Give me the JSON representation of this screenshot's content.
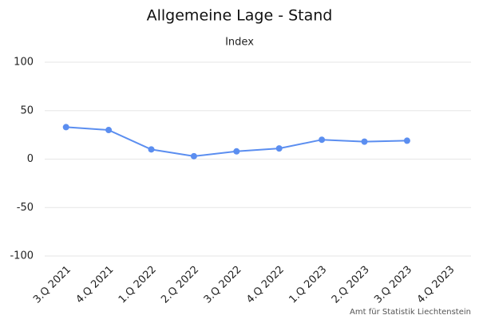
{
  "chart_data": {
    "type": "line",
    "title": "Allgemeine Lage - Stand",
    "subtitle": "Index",
    "categories": [
      "3.Q 2021",
      "4.Q 2021",
      "1.Q 2022",
      "2.Q 2022",
      "3.Q 2022",
      "4.Q 2022",
      "1.Q 2023",
      "2.Q 2023",
      "3.Q 2023",
      "4.Q 2023"
    ],
    "series": [
      {
        "name": "Index",
        "color": "#5b8ef0",
        "values": [
          33,
          30,
          10,
          3,
          8,
          11,
          20,
          18,
          19,
          null
        ]
      }
    ],
    "ylim": [
      -100,
      100
    ],
    "yticks": [
      -100,
      -50,
      0,
      50,
      100
    ],
    "grid": true,
    "credits": "Amt für Statistik Liechtenstein"
  }
}
